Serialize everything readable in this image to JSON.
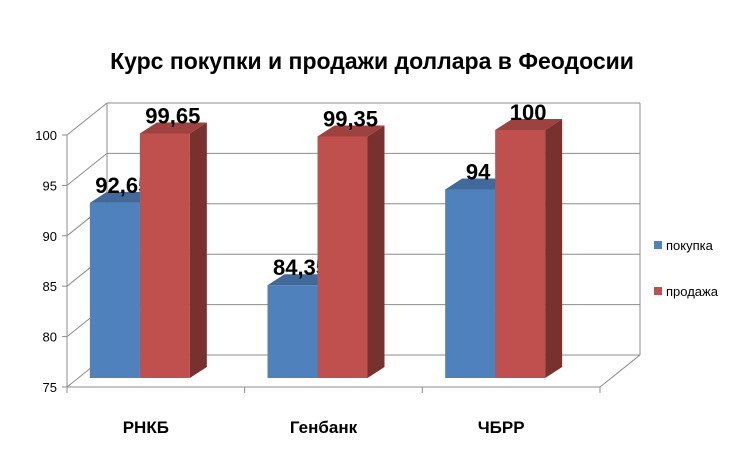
{
  "chart_data": {
    "type": "bar",
    "title": "Курс покупки и продажи доллара в Феодосии",
    "categories": [
      "РНКБ",
      "Генбанк",
      "ЧБРР"
    ],
    "series": [
      {
        "name": "покупка",
        "values": [
          92.65,
          84.35,
          94
        ],
        "labels": [
          "92,65",
          "84,35",
          "94"
        ],
        "color": "#4f81bd"
      },
      {
        "name": "продажа",
        "values": [
          99.65,
          99.35,
          100
        ],
        "labels": [
          "99,65",
          "99,35",
          "100"
        ],
        "color": "#c0504d"
      }
    ],
    "ylim": [
      75,
      100
    ],
    "yticks": [
      75,
      80,
      85,
      90,
      95,
      100
    ],
    "xlabel": "",
    "ylabel": "",
    "grid": true,
    "legend": "right"
  }
}
